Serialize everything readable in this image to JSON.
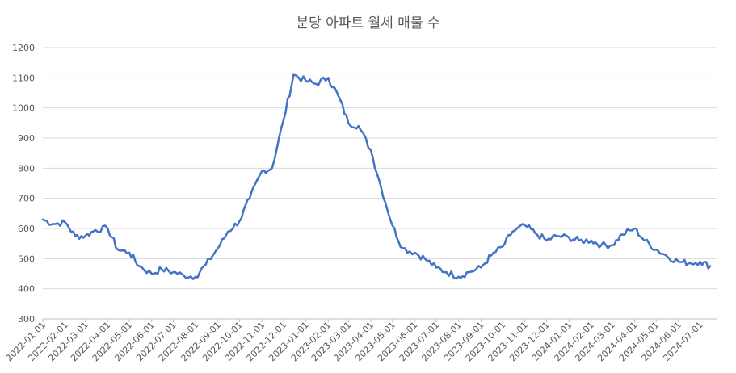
{
  "chart_data": {
    "type": "line",
    "title": "분당 아파트 월세 매물 수",
    "ylim": [
      300,
      1200
    ],
    "yticks": [
      300,
      400,
      500,
      600,
      700,
      800,
      900,
      1000,
      1100,
      1200
    ],
    "xlabel": "",
    "ylabel": "",
    "grid": true,
    "legend": "none",
    "line_color": "#4472C4",
    "x_tick_labels": [
      "2022-01-01",
      "2022-02-01",
      "2022-03-01",
      "2022-04-01",
      "2022-05-01",
      "2022-06-01",
      "2022-07-01",
      "2022-08-01",
      "2022-09-01",
      "2022-10-01",
      "2022-11-01",
      "2022-12-01",
      "2023-01-01",
      "2023-02-01",
      "2023-03-01",
      "2023-04-01",
      "2023-05-01",
      "2023-06-01",
      "2023-07-01",
      "2023-08-01",
      "2023-09-01",
      "2023-10-01",
      "2023-11-01",
      "2023-12-01",
      "2024-01-01",
      "2024-02-01",
      "2024-03-01",
      "2024-04-01",
      "2024-05-01",
      "2024-06-01",
      "2024-07-01"
    ],
    "series": [
      {
        "x": [
          "2022-01-01",
          "2022-01-15",
          "2022-02-01",
          "2022-02-15",
          "2022-03-01",
          "2022-03-15",
          "2022-04-01",
          "2022-04-15",
          "2022-05-01",
          "2022-05-15",
          "2022-06-01",
          "2022-06-15",
          "2022-07-01",
          "2022-07-15",
          "2022-08-01",
          "2022-08-15",
          "2022-09-01",
          "2022-09-15",
          "2022-10-01",
          "2022-10-15",
          "2022-11-01",
          "2022-11-15",
          "2022-12-01",
          "2022-12-15",
          "2023-01-01",
          "2023-01-15",
          "2023-02-01",
          "2023-02-15",
          "2023-03-01",
          "2023-03-15",
          "2023-04-01",
          "2023-04-15",
          "2023-05-01",
          "2023-05-15",
          "2023-06-01",
          "2023-06-15",
          "2023-07-01",
          "2023-07-15",
          "2023-08-01",
          "2023-08-15",
          "2023-09-01",
          "2023-09-15",
          "2023-10-01",
          "2023-10-15",
          "2023-11-01",
          "2023-11-15",
          "2023-12-01",
          "2023-12-15",
          "2024-01-01",
          "2024-01-15",
          "2024-02-01",
          "2024-02-15",
          "2024-03-01",
          "2024-03-15",
          "2024-04-01",
          "2024-04-15",
          "2024-05-01",
          "2024-05-15",
          "2024-06-01",
          "2024-06-15",
          "2024-07-01",
          "2024-07-15"
        ],
        "values": [
          630,
          615,
          620,
          575,
          575,
          595,
          600,
          530,
          520,
          475,
          450,
          465,
          455,
          445,
          440,
          480,
          535,
          590,
          625,
          700,
          790,
          800,
          960,
          1110,
          1090,
          1080,
          1100,
          1040,
          950,
          940,
          860,
          740,
          610,
          535,
          520,
          500,
          470,
          455,
          440,
          455,
          470,
          510,
          540,
          590,
          610,
          585,
          560,
          575,
          570,
          560,
          560,
          545,
          545,
          580,
          600,
          560,
          530,
          510,
          490,
          485,
          490,
          475
        ]
      }
    ]
  }
}
